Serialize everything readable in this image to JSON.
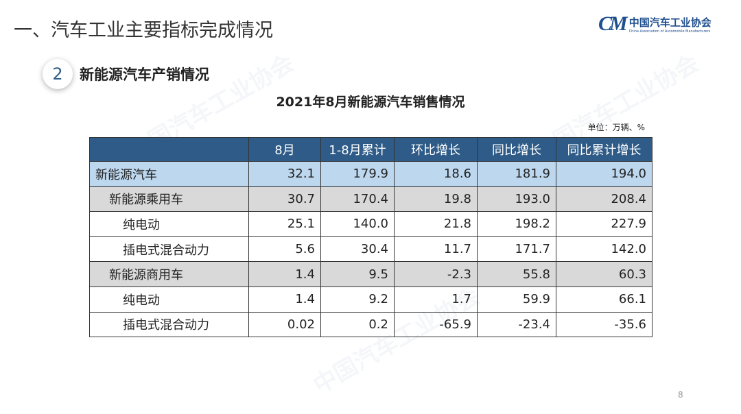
{
  "header": {
    "title": "一、汽车工业主要指标完成情况"
  },
  "logo": {
    "mark": "CM",
    "name_cn": "中国汽车工业协会",
    "name_en": "China Association of Automobile Manufacturers"
  },
  "section": {
    "number": "2",
    "label": "新能源汽车产销情况"
  },
  "table": {
    "title": "2021年8月新能源汽车销售情况",
    "unit": "单位：万辆、%",
    "columns": [
      "",
      "8月",
      "1-8月累计",
      "环比增长",
      "同比增长",
      "同比累计增长"
    ],
    "rows": [
      {
        "label": "新能源汽车",
        "indent": 0,
        "values": [
          "32.1",
          "179.9",
          "18.6",
          "181.9",
          "194.0"
        ]
      },
      {
        "label": "新能源乘用车",
        "indent": 1,
        "values": [
          "30.7",
          "170.4",
          "19.8",
          "193.0",
          "208.4"
        ]
      },
      {
        "label": "纯电动",
        "indent": 2,
        "values": [
          "25.1",
          "140.0",
          "21.8",
          "198.2",
          "227.9"
        ]
      },
      {
        "label": "插电式混合动力",
        "indent": 2,
        "values": [
          "5.6",
          "30.4",
          "11.7",
          "171.7",
          "142.0"
        ]
      },
      {
        "label": "新能源商用车",
        "indent": 1,
        "values": [
          "1.4",
          "9.5",
          "-2.3",
          "55.8",
          "60.3"
        ]
      },
      {
        "label": "纯电动",
        "indent": 2,
        "values": [
          "1.4",
          "9.2",
          "1.7",
          "59.9",
          "66.1"
        ]
      },
      {
        "label": "插电式混合动力",
        "indent": 2,
        "values": [
          "0.02",
          "0.2",
          "-65.9",
          "-23.4",
          "-35.6"
        ]
      }
    ]
  },
  "page_number": "8"
}
